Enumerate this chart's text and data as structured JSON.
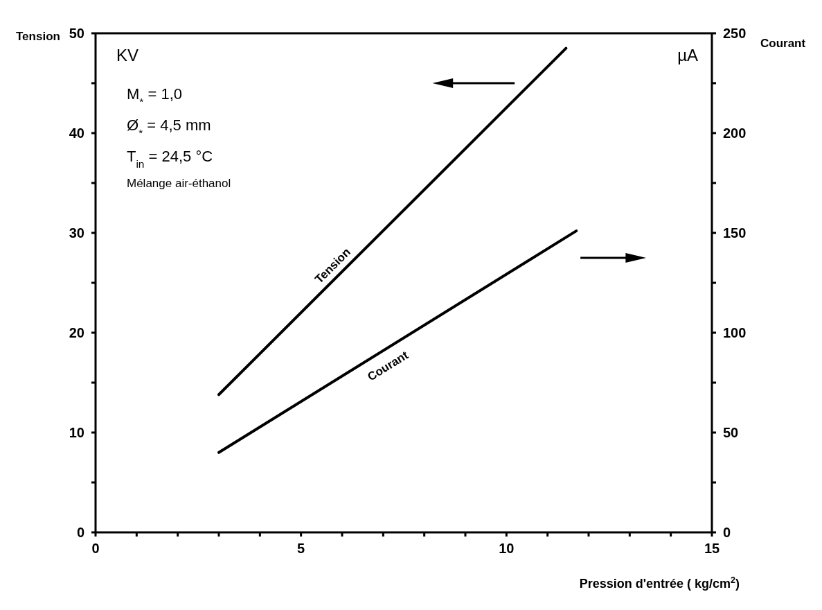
{
  "chart_data": {
    "type": "line",
    "xlabel": "Pression d'entrée ( kg/cm$^{2}$)",
    "ylabel": "Tension",
    "y2label": "Courant",
    "series": [
      {
        "name": "Tension",
        "color": "#000000",
        "x": [
          3,
          11.45
        ],
        "values": [
          13.8,
          48.5
        ]
      },
      {
        "name": "Courant",
        "color": "#000000",
        "axis": "y2",
        "x": [
          3,
          11.7
        ],
        "values": [
          40,
          151
        ]
      }
    ],
    "xlim": [
      0,
      15
    ],
    "xticks": [
      0,
      {
        "value": 1,
        "label": null
      },
      {
        "value": 2,
        "label": null
      },
      {
        "value": 3,
        "label": null
      },
      {
        "value": 4,
        "label": null
      },
      5,
      {
        "value": 6,
        "label": null
      },
      {
        "value": 7,
        "label": null
      },
      {
        "value": 8,
        "label": null
      },
      {
        "value": 9,
        "label": null
      },
      10,
      {
        "value": 11,
        "label": null
      },
      {
        "value": 12,
        "label": null
      },
      {
        "value": 13,
        "label": null
      },
      {
        "value": 14,
        "label": null
      },
      15
    ],
    "ylim": [
      0,
      50
    ],
    "yticks": [
      0,
      {
        "value": 5,
        "label": null
      },
      10,
      {
        "value": 15,
        "label": null
      },
      20,
      {
        "value": 25,
        "label": null
      },
      30,
      {
        "value": 35,
        "label": null
      },
      40,
      {
        "value": 45,
        "label": null
      },
      50
    ],
    "y2lim": [
      0,
      250
    ],
    "y2ticks": [
      0,
      {
        "value": 25,
        "label": null
      },
      50,
      {
        "value": 75,
        "label": null
      },
      100,
      {
        "value": 125,
        "label": null
      },
      150,
      {
        "value": 175,
        "label": null
      },
      200,
      {
        "value": 225,
        "label": null
      },
      250
    ],
    "grid": false,
    "legend": false,
    "line_style": "solid",
    "annotations": [
      "KV",
      "µA",
      "M$_{*}$ = 1,0",
      "Ø$_{*}$ = 4,5 mm",
      "T$_{in}$ = 24,5 °C",
      "Mélange air-éthanol"
    ]
  }
}
